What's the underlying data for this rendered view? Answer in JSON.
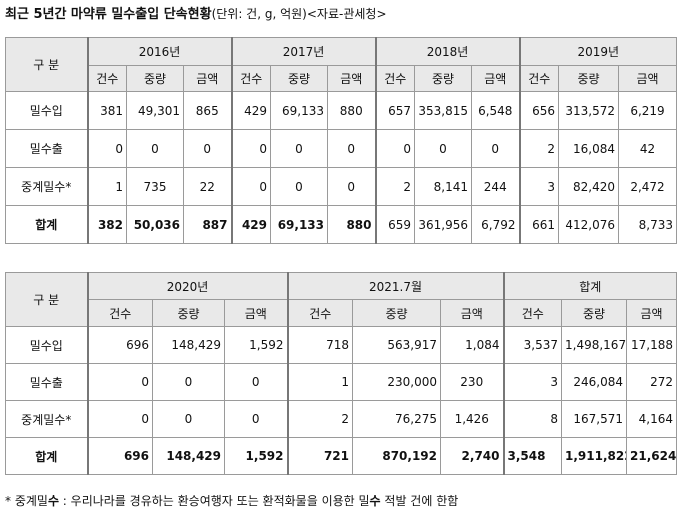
{
  "title": "최근 5년간 마약류 밀수출입 단속현황",
  "subtitle": "(단위: 건, g, 억원)<자료-관세청>",
  "category_header": "구  분",
  "sub_headers": [
    "건수",
    "중량",
    "금액"
  ],
  "rows": [
    "밀수입",
    "밀수출",
    "중계밀수*",
    "합계"
  ],
  "table1": {
    "years": [
      "2016년",
      "2017년",
      "2018년",
      "2019년"
    ],
    "data": [
      [
        [
          "381",
          "49,301",
          "865"
        ],
        [
          "429",
          "69,133",
          "880"
        ],
        [
          "657",
          "353,815",
          "6,548"
        ],
        [
          "656",
          "313,572",
          "6,219"
        ]
      ],
      [
        [
          "0",
          "0",
          "0"
        ],
        [
          "0",
          "0",
          "0"
        ],
        [
          "0",
          "0",
          "0"
        ],
        [
          "2",
          "16,084",
          "42"
        ]
      ],
      [
        [
          "1",
          "735",
          "22"
        ],
        [
          "0",
          "0",
          "0"
        ],
        [
          "2",
          "8,141",
          "244"
        ],
        [
          "3",
          "82,420",
          "2,472"
        ]
      ],
      [
        [
          "382",
          "50,036",
          "887"
        ],
        [
          "429",
          "69,133",
          "880"
        ],
        [
          "659",
          "361,956",
          "6,792"
        ],
        [
          "661",
          "412,076",
          "8,733"
        ]
      ]
    ]
  },
  "table2": {
    "years": [
      "2020년",
      "2021.7월",
      "합계"
    ],
    "data": [
      [
        [
          "696",
          "148,429",
          "1,592"
        ],
        [
          "718",
          "563,917",
          "1,084"
        ],
        [
          "3,537",
          "1,498,167",
          "17,188"
        ]
      ],
      [
        [
          "0",
          "0",
          "0"
        ],
        [
          "1",
          "230,000",
          "230"
        ],
        [
          "3",
          "246,084",
          "272"
        ]
      ],
      [
        [
          "0",
          "0",
          "0"
        ],
        [
          "2",
          "76,275",
          "1,426"
        ],
        [
          "8",
          "167,571",
          "4,164"
        ]
      ],
      [
        [
          "696",
          "148,429",
          "1,592"
        ],
        [
          "721",
          "870,192",
          "2,740"
        ],
        [
          "3,548",
          "1,911,822",
          "21,624"
        ]
      ]
    ]
  },
  "footnote": {
    "prefix": "* 중계밀",
    "bold1": "수",
    "mid": " : 우리나라를 경유하는 환승여행자 또는 환적화물을 이용한 밀",
    "bold2": "수",
    "suffix": " 적발 건에 한함"
  }
}
